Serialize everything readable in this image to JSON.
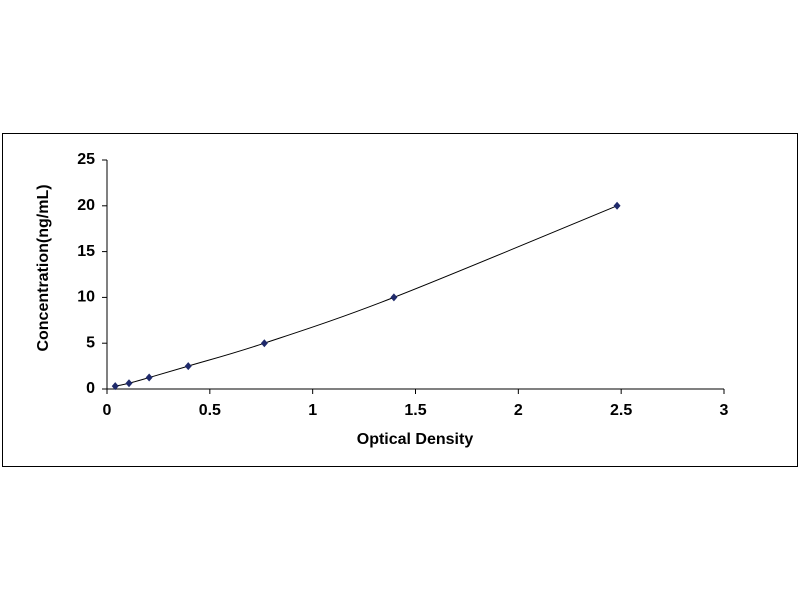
{
  "chart_data": {
    "type": "scatter",
    "x_label": "Optical Density",
    "y_label": "Concentration(ng/mL)",
    "series": [
      {
        "color": "#1f2a6b",
        "x": [
          0.04,
          0.107,
          0.205,
          0.395,
          0.765,
          1.395,
          2.48
        ],
        "values": [
          0.31,
          0.63,
          1.25,
          2.5,
          5,
          10,
          20
        ]
      }
    ],
    "xlim": [
      0,
      3
    ],
    "xticks": [
      0,
      0.5,
      1,
      1.5,
      2,
      2.5,
      3
    ],
    "ylim": [
      0,
      25
    ],
    "yticks": [
      0,
      5,
      10,
      15,
      20,
      25
    ],
    "grid": false
  }
}
